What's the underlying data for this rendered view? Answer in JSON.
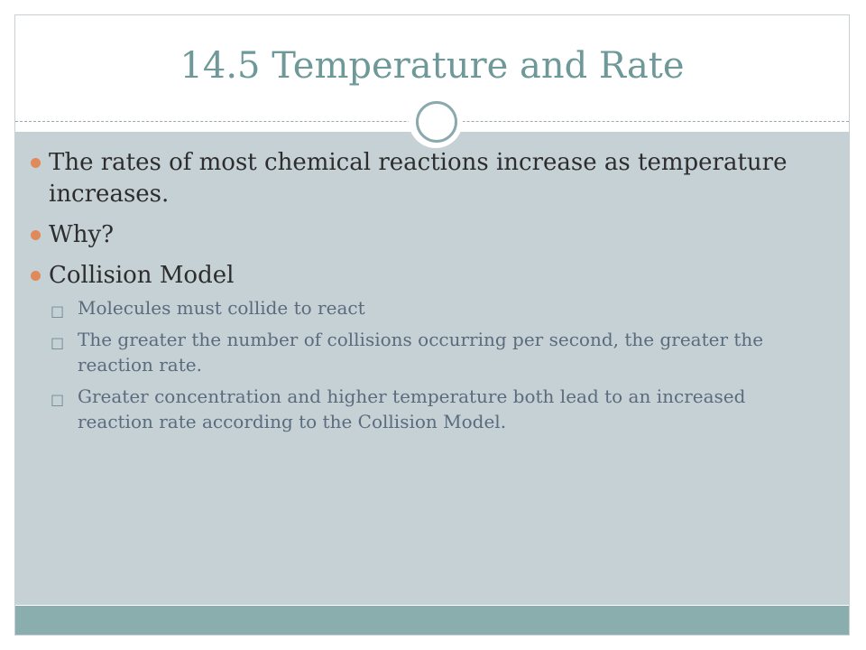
{
  "slide": {
    "title": "14.5 Temperature and Rate",
    "bullets": [
      {
        "text": "The rates of most chemical reactions increase as temperature increases."
      },
      {
        "text": "Why?"
      },
      {
        "text": "Collision Model"
      }
    ],
    "sub_bullets": [
      {
        "text": "Molecules must collide to react"
      },
      {
        "text": "The greater the number of collisions occurring per second, the greater the reaction rate."
      },
      {
        "text": "Greater concentration and higher temperature both lead to an increased reaction rate according to the Collision Model."
      }
    ],
    "sub_marker_icon": "hollow-square-bullet-icon",
    "colors": {
      "title": "#6e9998",
      "content_background": "#c6d1d6",
      "footer_band": "#8aadad",
      "bullet_dot": "#e08a5a",
      "sub_text": "#5a6b7d"
    }
  }
}
